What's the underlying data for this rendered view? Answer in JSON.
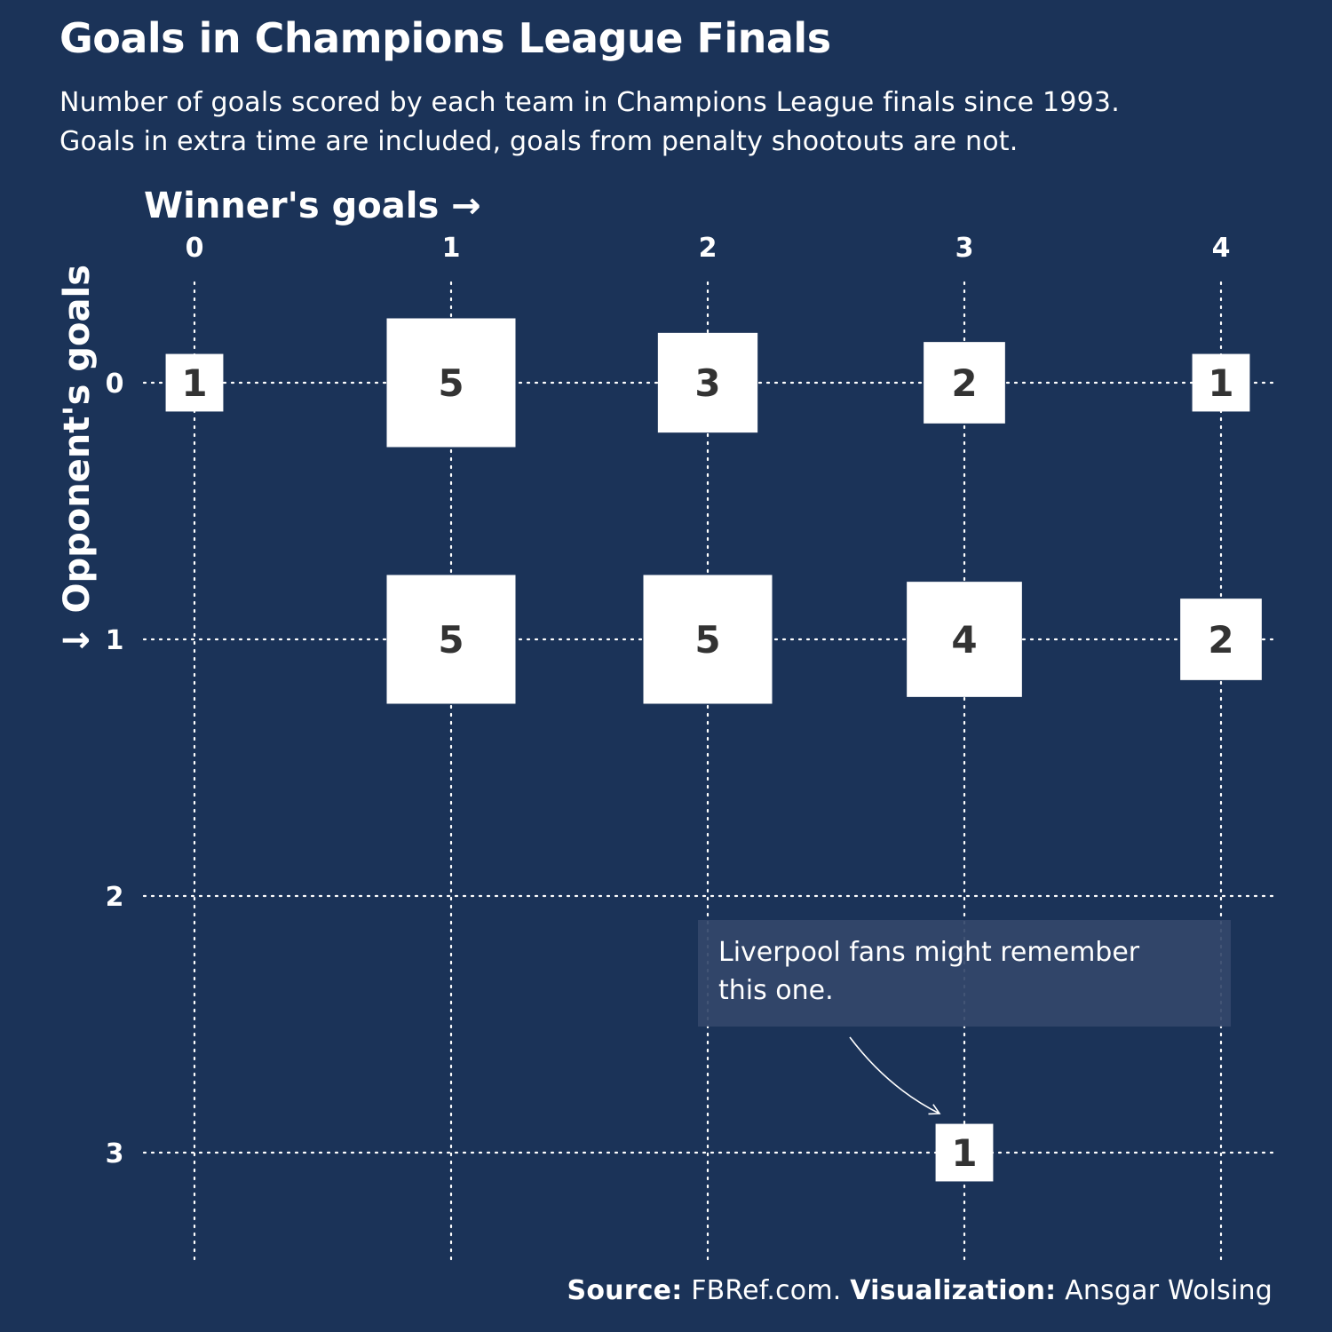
{
  "header": {
    "title": "Goals in Champions League Finals",
    "subtitle_line1": "Number of goals scored by each team in Champions League finals since 1993.",
    "subtitle_line2": "Goals in extra time are included, goals from penalty shootouts are not."
  },
  "chart_data": {
    "type": "heatmap",
    "xlabel": "Winner's goals →",
    "ylabel": "↓ Opponent's goals",
    "x_ticks": [
      "0",
      "1",
      "2",
      "3",
      "4"
    ],
    "y_ticks": [
      "0",
      "1",
      "2",
      "3"
    ],
    "xlim": [
      0,
      4
    ],
    "ylim": [
      0,
      3
    ],
    "grid": true,
    "cells": [
      {
        "x": 0,
        "y": 0,
        "count": 1
      },
      {
        "x": 1,
        "y": 0,
        "count": 5
      },
      {
        "x": 2,
        "y": 0,
        "count": 3
      },
      {
        "x": 3,
        "y": 0,
        "count": 2
      },
      {
        "x": 4,
        "y": 0,
        "count": 1
      },
      {
        "x": 1,
        "y": 1,
        "count": 5
      },
      {
        "x": 2,
        "y": 1,
        "count": 5
      },
      {
        "x": 3,
        "y": 1,
        "count": 4
      },
      {
        "x": 4,
        "y": 1,
        "count": 2
      },
      {
        "x": 3,
        "y": 3,
        "count": 1
      }
    ],
    "annotation": {
      "line1": "Liverpool fans might remember",
      "line2": "this one.",
      "target": {
        "x": 3,
        "y": 3
      }
    }
  },
  "footer": {
    "source_label": "Source:",
    "source_value": "FBRef.com.",
    "viz_label": "Visualization:",
    "viz_value": "Ansgar Wolsing"
  },
  "colors": {
    "background": "#1b3358",
    "box_fill": "#ffffff",
    "box_text": "#333333",
    "grid": "#ffffff",
    "annotation_bg": "#33476a"
  }
}
